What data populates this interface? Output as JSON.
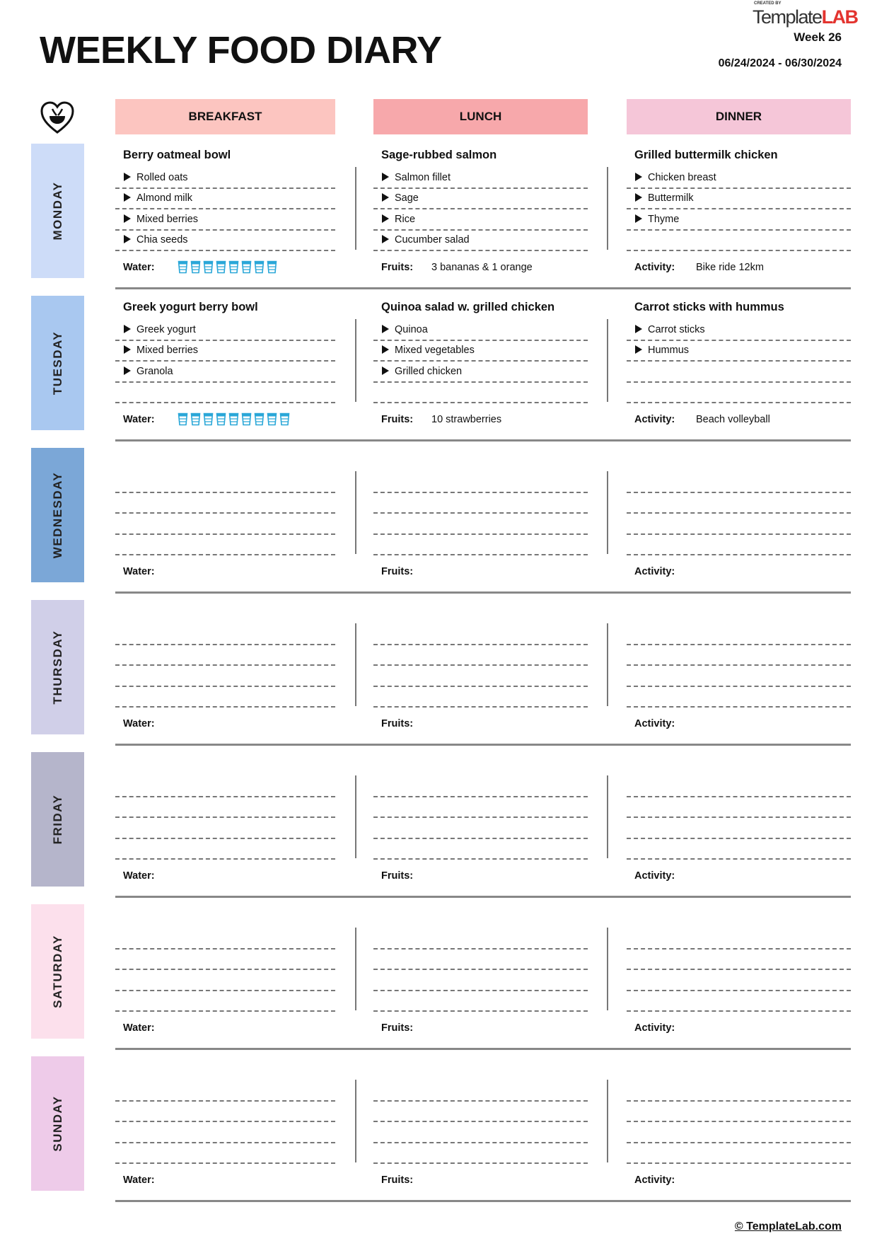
{
  "header": {
    "title": "WEEKLY FOOD DIARY",
    "logo_small": "CREATED BY",
    "logo_text": "TemplateLAB",
    "week": "Week 26",
    "date_range": "06/24/2024 - 06/30/2024"
  },
  "columns": [
    {
      "label": "BREAKFAST",
      "color": "#fcc5c0"
    },
    {
      "label": "LUNCH",
      "color": "#f7a8ab"
    },
    {
      "label": "DINNER",
      "color": "#f5c6d8"
    }
  ],
  "row_labels": {
    "water": "Water:",
    "fruits": "Fruits:",
    "activity": "Activity:"
  },
  "water_glass_color": "#2aa7d8",
  "days": [
    {
      "name": "MONDAY",
      "color": "#cddcf8",
      "meals": [
        {
          "title": "Berry oatmeal bowl",
          "items": [
            "Rolled oats",
            "Almond milk",
            "Mixed berries",
            "Chia seeds"
          ]
        },
        {
          "title": "Sage-rubbed salmon",
          "items": [
            "Salmon fillet",
            "Sage",
            "Rice",
            "Cucumber salad"
          ]
        },
        {
          "title": "Grilled buttermilk chicken",
          "items": [
            "Chicken breast",
            "Buttermilk",
            "Thyme"
          ]
        }
      ],
      "water_glasses": 8,
      "fruits": "3 bananas & 1 orange",
      "activity": "Bike ride 12km"
    },
    {
      "name": "TUESDAY",
      "color": "#a9c8f0",
      "meals": [
        {
          "title": "Greek yogurt berry bowl",
          "items": [
            "Greek yogurt",
            "Mixed berries",
            "Granola"
          ]
        },
        {
          "title": "Quinoa salad w. grilled chicken",
          "items": [
            "Quinoa",
            "Mixed vegetables",
            "Grilled chicken"
          ]
        },
        {
          "title": "Carrot sticks with hummus",
          "items": [
            "Carrot sticks",
            "Hummus"
          ]
        }
      ],
      "water_glasses": 9,
      "fruits": "10 strawberries",
      "activity": "Beach volleyball"
    },
    {
      "name": "WEDNESDAY",
      "color": "#7ba7d7",
      "meals": [
        {
          "title": "",
          "items": []
        },
        {
          "title": "",
          "items": []
        },
        {
          "title": "",
          "items": []
        }
      ],
      "water_glasses": 0,
      "fruits": "",
      "activity": ""
    },
    {
      "name": "THURSDAY",
      "color": "#d0cfe8",
      "meals": [
        {
          "title": "",
          "items": []
        },
        {
          "title": "",
          "items": []
        },
        {
          "title": "",
          "items": []
        }
      ],
      "water_glasses": 0,
      "fruits": "",
      "activity": ""
    },
    {
      "name": "FRIDAY",
      "color": "#b5b5cb",
      "meals": [
        {
          "title": "",
          "items": []
        },
        {
          "title": "",
          "items": []
        },
        {
          "title": "",
          "items": []
        }
      ],
      "water_glasses": 0,
      "fruits": "",
      "activity": ""
    },
    {
      "name": "SATURDAY",
      "color": "#fce0ec",
      "meals": [
        {
          "title": "",
          "items": []
        },
        {
          "title": "",
          "items": []
        },
        {
          "title": "",
          "items": []
        }
      ],
      "water_glasses": 0,
      "fruits": "",
      "activity": ""
    },
    {
      "name": "SUNDAY",
      "color": "#eecbe9",
      "meals": [
        {
          "title": "",
          "items": []
        },
        {
          "title": "",
          "items": []
        },
        {
          "title": "",
          "items": []
        }
      ],
      "water_glasses": 0,
      "fruits": "",
      "activity": ""
    }
  ],
  "footer": "© TemplateLab.com"
}
